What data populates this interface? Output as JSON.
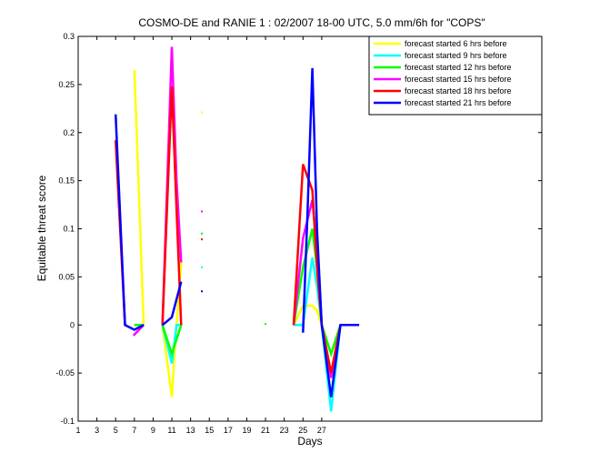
{
  "chart_data": {
    "type": "line",
    "title": "COSMO-DE and RANIE 1 : 02/2007 18-00 UTC, 5.0 mm/6h for \"COPS\"",
    "xlabel": "Days",
    "ylabel": "Equitable threat score",
    "xlim": [
      1,
      50.5
    ],
    "ylim": [
      -0.1,
      0.3
    ],
    "xticks": [
      1,
      3,
      5,
      7,
      9,
      11,
      13,
      15,
      17,
      19,
      21,
      23,
      25,
      27
    ],
    "yticks": [
      -0.1,
      -0.05,
      0,
      0.05,
      0.1,
      0.15,
      0.2,
      0.25,
      0.3
    ],
    "grid": false,
    "legend_position": "top-right",
    "series": [
      {
        "name": "forecast started 6 hrs before",
        "color": "#ffff00",
        "segments": [
          [
            [
              7,
              0.265
            ],
            [
              8,
              0.0
            ]
          ],
          [
            [
              10,
              0.0
            ],
            [
              11,
              -0.075
            ],
            [
              11.5,
              0.0
            ],
            [
              12,
              0.065
            ]
          ],
          [
            [
              24,
              0.0
            ],
            [
              25,
              0.02
            ],
            [
              26,
              0.02
            ],
            [
              26.5,
              0.015
            ],
            [
              27,
              0.0
            ],
            [
              28,
              -0.03
            ],
            [
              29,
              0.0
            ]
          ]
        ],
        "points": [
          [
            7,
            0.0
          ],
          [
            14.2,
            0.221
          ]
        ]
      },
      {
        "name": "forecast started 9 hrs before",
        "color": "#00ffff",
        "segments": [
          [
            [
              10,
              0.0
            ],
            [
              11,
              -0.04
            ],
            [
              11.5,
              0.0
            ],
            [
              12,
              0.0
            ]
          ],
          [
            [
              24,
              0.0
            ],
            [
              25,
              0.0
            ],
            [
              26,
              0.07
            ],
            [
              26.5,
              0.04
            ],
            [
              27,
              0.0
            ],
            [
              28,
              -0.09
            ],
            [
              29,
              0.0
            ]
          ]
        ],
        "points": [
          [
            14.2,
            0.06
          ]
        ]
      },
      {
        "name": "forecast started 12 hrs before",
        "color": "#00ff00",
        "segments": [
          [
            [
              7,
              0.0
            ],
            [
              8,
              0.0
            ]
          ],
          [
            [
              10,
              0.0
            ],
            [
              11,
              -0.03
            ],
            [
              12,
              0.0
            ]
          ],
          [
            [
              24,
              0.0
            ],
            [
              25,
              0.06
            ],
            [
              26,
              0.1
            ],
            [
              26.5,
              0.06
            ],
            [
              27,
              0.0
            ],
            [
              28,
              -0.03
            ],
            [
              29,
              0.0
            ]
          ]
        ],
        "points": [
          [
            14.2,
            0.095
          ],
          [
            21,
            0.001
          ]
        ]
      },
      {
        "name": "forecast started 15 hrs before",
        "color": "#ff00ff",
        "segments": [
          [
            [
              6.9,
              -0.011
            ],
            [
              8,
              0.0
            ]
          ],
          [
            [
              10,
              0.0
            ],
            [
              11,
              0.289
            ],
            [
              11.5,
              0.15
            ],
            [
              12,
              0.065
            ]
          ],
          [
            [
              24,
              0.0
            ],
            [
              25,
              0.09
            ],
            [
              26,
              0.13
            ],
            [
              26.5,
              0.08
            ],
            [
              27,
              0.0
            ],
            [
              28,
              -0.055
            ],
            [
              29,
              0.0
            ]
          ]
        ],
        "points": [
          [
            14.2,
            0.118
          ]
        ]
      },
      {
        "name": "forecast started 18 hrs before",
        "color": "#ff0000",
        "segments": [
          [
            [
              5,
              0.192
            ],
            [
              6,
              0.0
            ]
          ],
          [
            [
              10,
              0.0
            ],
            [
              11,
              0.248
            ],
            [
              11.5,
              0.12
            ],
            [
              12,
              0.0
            ]
          ],
          [
            [
              24,
              0.0
            ],
            [
              25,
              0.167
            ],
            [
              26,
              0.14
            ],
            [
              26.5,
              0.06
            ],
            [
              27,
              0.0
            ],
            [
              28,
              -0.05
            ],
            [
              29,
              0.0
            ]
          ]
        ],
        "points": [
          [
            14.2,
            0.089
          ]
        ]
      },
      {
        "name": "forecast started 21 hrs before",
        "color": "#0000ff",
        "segments": [
          [
            [
              5,
              0.219
            ],
            [
              6,
              0.0
            ],
            [
              7,
              -0.005
            ],
            [
              8,
              0.0
            ]
          ],
          [
            [
              10,
              0.0
            ],
            [
              11,
              0.008
            ],
            [
              12,
              0.045
            ]
          ],
          [
            [
              25,
              -0.008
            ],
            [
              25.5,
              0.12
            ],
            [
              26,
              0.267
            ],
            [
              26.5,
              0.1
            ],
            [
              27,
              0.0
            ],
            [
              28,
              -0.075
            ],
            [
              29,
              0.0
            ],
            [
              31,
              0.0
            ]
          ]
        ],
        "points": [
          [
            14.2,
            0.035
          ]
        ]
      }
    ]
  }
}
